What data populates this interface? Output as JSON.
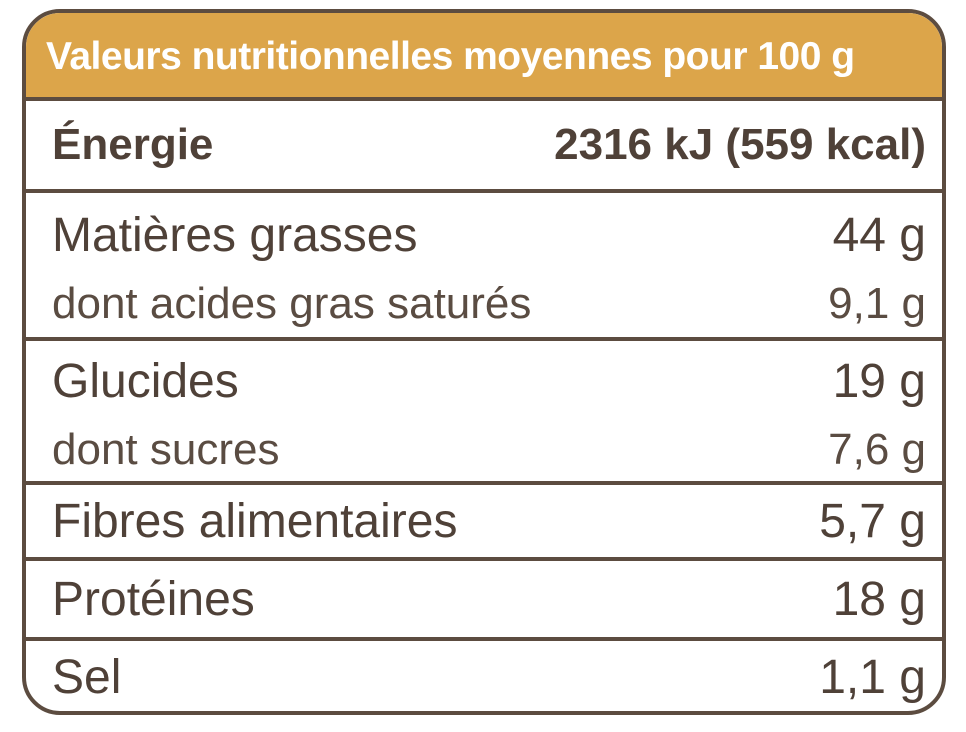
{
  "title": "Valeurs nutritionnelles moyennes pour 100 g",
  "energy": {
    "label": "Énergie",
    "value": "2316 kJ (559 kcal)"
  },
  "fat": {
    "label": "Matières grasses",
    "value": "44 g",
    "sub_label": "dont acides gras saturés",
    "sub_value": "9,1 g"
  },
  "carbohydrates": {
    "label": "Glucides",
    "value": "19 g",
    "sub_label": "dont sucres",
    "sub_value": "7,6 g"
  },
  "fiber": {
    "label": "Fibres alimentaires",
    "value": "5,7 g"
  },
  "protein": {
    "label": "Protéines",
    "value": "18 g"
  },
  "salt": {
    "label": "Sel",
    "value": "1,1 g"
  },
  "colors": {
    "header_background": "#dca54a",
    "border": "#5c4c40",
    "text": "#4f4138"
  }
}
